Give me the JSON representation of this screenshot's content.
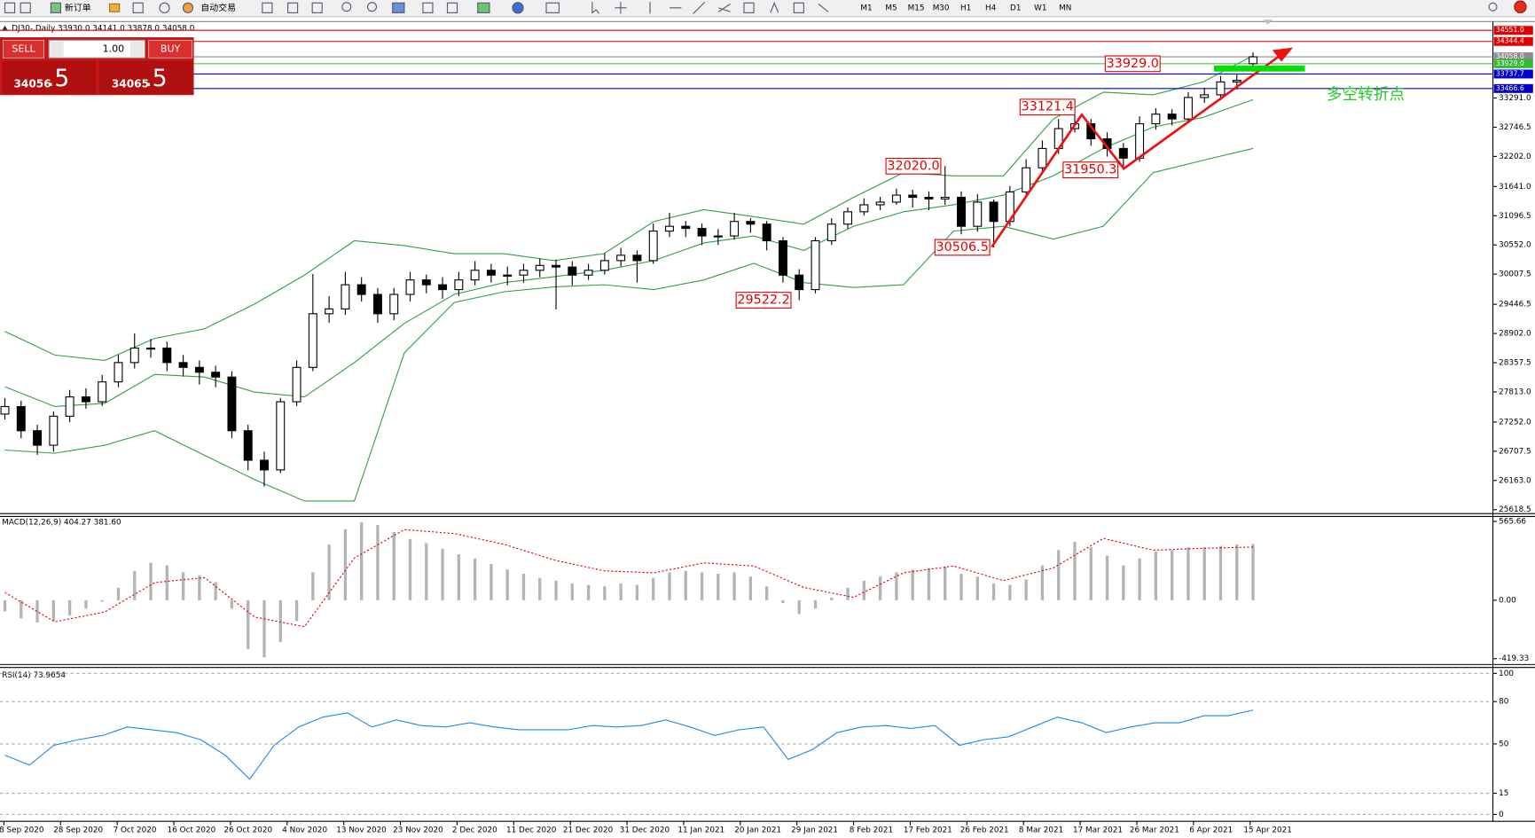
{
  "toolbar": {
    "new_order": "新订单",
    "auto_trading": "自动交易",
    "timeframes": [
      "M1",
      "M5",
      "M15",
      "M30",
      "H1",
      "H4",
      "D1",
      "W1",
      "MN"
    ]
  },
  "one_click": {
    "sell": "SELL",
    "lot": "1.00",
    "buy": "BUY",
    "sell_price_main": "34056",
    "sell_price_frac": ".5",
    "buy_price_main": "34065",
    "buy_price_frac": ".5"
  },
  "chart_data": [
    {
      "type": "candlestick",
      "title": "DJ30-,Daily  33930.0 34141.0 33878.0 34058.0",
      "ylim": [
        25564,
        34715
      ],
      "yticks": [
        {
          "value": 33291,
          "label": "33291.0"
        },
        32746.5,
        {
          "value": 32202,
          "label": "32202.0"
        },
        {
          "value": 31641,
          "label": "31641.0"
        },
        31096.5,
        {
          "value": 30552,
          "label": "30552.0"
        },
        30007.5,
        29446.5,
        {
          "value": 28902,
          "label": "28902.0"
        },
        28357.5,
        {
          "value": 27813,
          "label": "27813.0"
        },
        {
          "value": 27252,
          "label": "27252.0"
        },
        26707.5,
        {
          "value": 26163,
          "label": "26163.0"
        },
        25618.5
      ],
      "up_color": "#ffffff",
      "down_color": "#000000",
      "open": [
        27400,
        27540,
        27090,
        26820,
        27360,
        27720,
        27630,
        28000,
        28360,
        28630,
        28630,
        28360,
        28270,
        28180,
        28090,
        27090,
        26540,
        26360,
        27630,
        28270,
        29270,
        29360,
        29810,
        29630,
        29270,
        29630,
        29900,
        29810,
        29720,
        29900,
        30080,
        29990,
        29990,
        30080,
        30170,
        30140,
        29990,
        30080,
        30260,
        30360,
        30260,
        30810,
        30900,
        30860,
        30720,
        30720,
        30990,
        30940,
        30630,
        29990,
        29720,
        30630,
        30940,
        31170,
        31300,
        31350,
        31480,
        31440,
        31410,
        31440,
        30900,
        31350,
        30990,
        31540,
        31990,
        32350,
        32720,
        32810,
        32530,
        32350,
        32170,
        32810,
        32990,
        32900,
        33300,
        33350,
        33590,
        33930
      ],
      "high": [
        27700,
        27650,
        27200,
        27450,
        27850,
        27880,
        28130,
        28500,
        28900,
        28800,
        28750,
        28500,
        28400,
        28300,
        28200,
        27200,
        26700,
        27700,
        28400,
        30010,
        29600,
        30050,
        29950,
        29750,
        29750,
        30050,
        30000,
        29950,
        30050,
        30250,
        30200,
        30150,
        30200,
        30300,
        30280,
        30250,
        30200,
        30400,
        30500,
        30450,
        30950,
        31150,
        31000,
        30950,
        30850,
        31150,
        31050,
        31000,
        30700,
        30100,
        30700,
        31050,
        31250,
        31420,
        31450,
        31600,
        31580,
        31550,
        32020.0,
        31550,
        31500,
        31400,
        31650,
        32150,
        32500,
        32900,
        33121.4,
        32900,
        32650,
        32450,
        32950,
        33100,
        33080,
        33400,
        33480,
        33700,
        33750,
        34141
      ],
      "low": [
        27300,
        26950,
        26640,
        26700,
        27250,
        27500,
        27550,
        27900,
        28250,
        28450,
        28200,
        28100,
        27950,
        27900,
        26950,
        26350,
        26050,
        26300,
        27550,
        28200,
        29100,
        29250,
        29500,
        29100,
        29150,
        29500,
        29650,
        29550,
        29600,
        29800,
        29850,
        29800,
        29850,
        29950,
        29350,
        29800,
        29900,
        30000,
        30150,
        29850,
        30200,
        30700,
        30700,
        30550,
        30550,
        30650,
        30780,
        30450,
        29850,
        29522.2,
        29650,
        30550,
        30850,
        31100,
        31200,
        31300,
        31250,
        31200,
        31300,
        30750,
        30800,
        30506.5,
        30900,
        31450,
        31900,
        32250,
        32650,
        32400,
        32200,
        31950.3,
        32100,
        32700,
        32780,
        32850,
        33200,
        33250,
        33450,
        33878
      ],
      "close": [
        27540,
        27090,
        26820,
        27360,
        27720,
        27630,
        28000,
        28360,
        28630,
        28630,
        28360,
        28270,
        28180,
        28090,
        27090,
        26540,
        26360,
        27630,
        28270,
        29270,
        29360,
        29810,
        29630,
        29270,
        29630,
        29900,
        29810,
        29720,
        29900,
        30080,
        29990,
        29990,
        30080,
        30170,
        30140,
        29990,
        30080,
        30260,
        30360,
        30260,
        30810,
        30900,
        30860,
        30720,
        30720,
        30990,
        30940,
        30630,
        29990,
        29720,
        30630,
        30940,
        31170,
        31300,
        31350,
        31480,
        31440,
        31410,
        31440,
        30900,
        31350,
        30990,
        31540,
        31990,
        32350,
        32720,
        32810,
        32530,
        32350,
        32170,
        32810,
        32990,
        32900,
        33300,
        33350,
        33590,
        33620,
        34058
      ],
      "bands": {
        "color": "#2ea043",
        "upper": [
          28940,
          28500,
          28400,
          28810,
          28990,
          29450,
          29990,
          30630,
          30540,
          30390,
          30390,
          30260,
          30390,
          30990,
          31210,
          31080,
          30940,
          31440,
          31900,
          31840,
          31840,
          32900,
          33400,
          33350,
          33590,
          34080
        ],
        "middle": [
          27910,
          27540,
          27600,
          28140,
          28090,
          27810,
          27720,
          28360,
          29090,
          29630,
          29850,
          29960,
          30080,
          30260,
          30590,
          30720,
          30450,
          30900,
          31170,
          31300,
          31480,
          31840,
          32350,
          32750,
          32930,
          33260
        ],
        "lower": [
          26730,
          26670,
          26820,
          27090,
          26630,
          26180,
          25780,
          25780,
          28540,
          29480,
          29680,
          29770,
          29810,
          29720,
          29900,
          30210,
          29850,
          29760,
          29810,
          30810,
          30900,
          30660,
          30900,
          31900,
          32130,
          32350
        ]
      },
      "price_lines": [
        {
          "value": 34551,
          "label": "34551.0",
          "color": "#e00000"
        },
        {
          "value": 34344.4,
          "label": "34344.4",
          "color": "#e00000"
        },
        {
          "value": 34058,
          "label": "34058.0",
          "color": "#8c8c8c"
        },
        {
          "value": 33929,
          "label": "33929.0",
          "color": "#2ebd2e"
        },
        {
          "value": 33737.7,
          "label": "33737.7",
          "color": "#0000d0"
        },
        {
          "value": 33466.6,
          "label": "33466.6",
          "color": "#0000d0"
        }
      ],
      "annotations": [
        {
          "text": "33929.0",
          "value": 33929
        },
        {
          "text": "33121.4",
          "value": 33121.4
        },
        {
          "text": "32020.0",
          "value": 32020
        },
        {
          "text": "31950.3",
          "value": 31950.3
        },
        {
          "text": "30506.5",
          "value": 30506.5
        },
        {
          "text": "29522.2",
          "value": 29522.2
        }
      ],
      "signal_text": "多空转折点"
    },
    {
      "type": "macd",
      "title": "MACD(12,26,9) 404.27 381.60",
      "ylim": [
        -454.5,
        594
      ],
      "yticks": [
        565.66,
        {
          "value": 0,
          "label": "0.00"
        },
        -419.33
      ],
      "hist_color": "#b4b4b4",
      "signal_color": "#e00000",
      "histogram": [
        -80,
        -130,
        -160,
        -150,
        -110,
        -60,
        -10,
        90,
        210,
        270,
        250,
        200,
        180,
        130,
        -60,
        -350,
        -410,
        -300,
        -150,
        200,
        400,
        510,
        560,
        540,
        490,
        440,
        410,
        370,
        330,
        300,
        260,
        220,
        190,
        160,
        140,
        120,
        110,
        100,
        120,
        110,
        160,
        200,
        210,
        200,
        190,
        200,
        170,
        100,
        -20,
        -100,
        -60,
        20,
        90,
        140,
        170,
        200,
        220,
        230,
        240,
        190,
        170,
        120,
        110,
        150,
        250,
        360,
        420,
        380,
        320,
        250,
        300,
        350,
        360,
        380,
        380,
        390,
        400,
        404.27
      ],
      "signal": [
        56,
        -155,
        -84,
        127,
        162,
        -120,
        -190,
        303,
        507,
        479,
        401,
        289,
        211,
        197,
        268,
        246,
        92,
        21,
        197,
        246,
        141,
        232,
        444,
        359,
        373,
        381.6
      ]
    },
    {
      "type": "rsi",
      "title": "RSI(14) 73.9654",
      "ylim": [
        -4.9,
        104.2
      ],
      "yticks": [
        100,
        80,
        50,
        15,
        0
      ],
      "color": "#1e88e5",
      "values": [
        42,
        35,
        49,
        53,
        56,
        62,
        60,
        58,
        53,
        42,
        25,
        49,
        62,
        69,
        72,
        62,
        67,
        63,
        62,
        65,
        62,
        60,
        60,
        60,
        63,
        62,
        63,
        67,
        62,
        56,
        60,
        62,
        39,
        46,
        58,
        62,
        63,
        61,
        63,
        49,
        53,
        55,
        62,
        69,
        65,
        58,
        62,
        65,
        65,
        70,
        70,
        73.9654
      ],
      "x_labels": [
        "8 Sep 2020",
        "28 Sep 2020",
        "7 Oct 2020",
        "16 Oct 2020",
        "26 Oct 2020",
        "4 Nov 2020",
        "13 Nov 2020",
        "23 Nov 2020",
        "2 Dec 2020",
        "11 Dec 2020",
        "21 Dec 2020",
        "31 Dec 2020",
        "11 Jan 2021",
        "20 Jan 2021",
        "29 Jan 2021",
        "8 Feb 2021",
        "17 Feb 2021",
        "26 Feb 2021",
        "8 Mar 2021",
        "17 Mar 2021",
        "26 Mar 2021",
        "6 Apr 2021",
        "15 Apr 2021"
      ]
    }
  ]
}
